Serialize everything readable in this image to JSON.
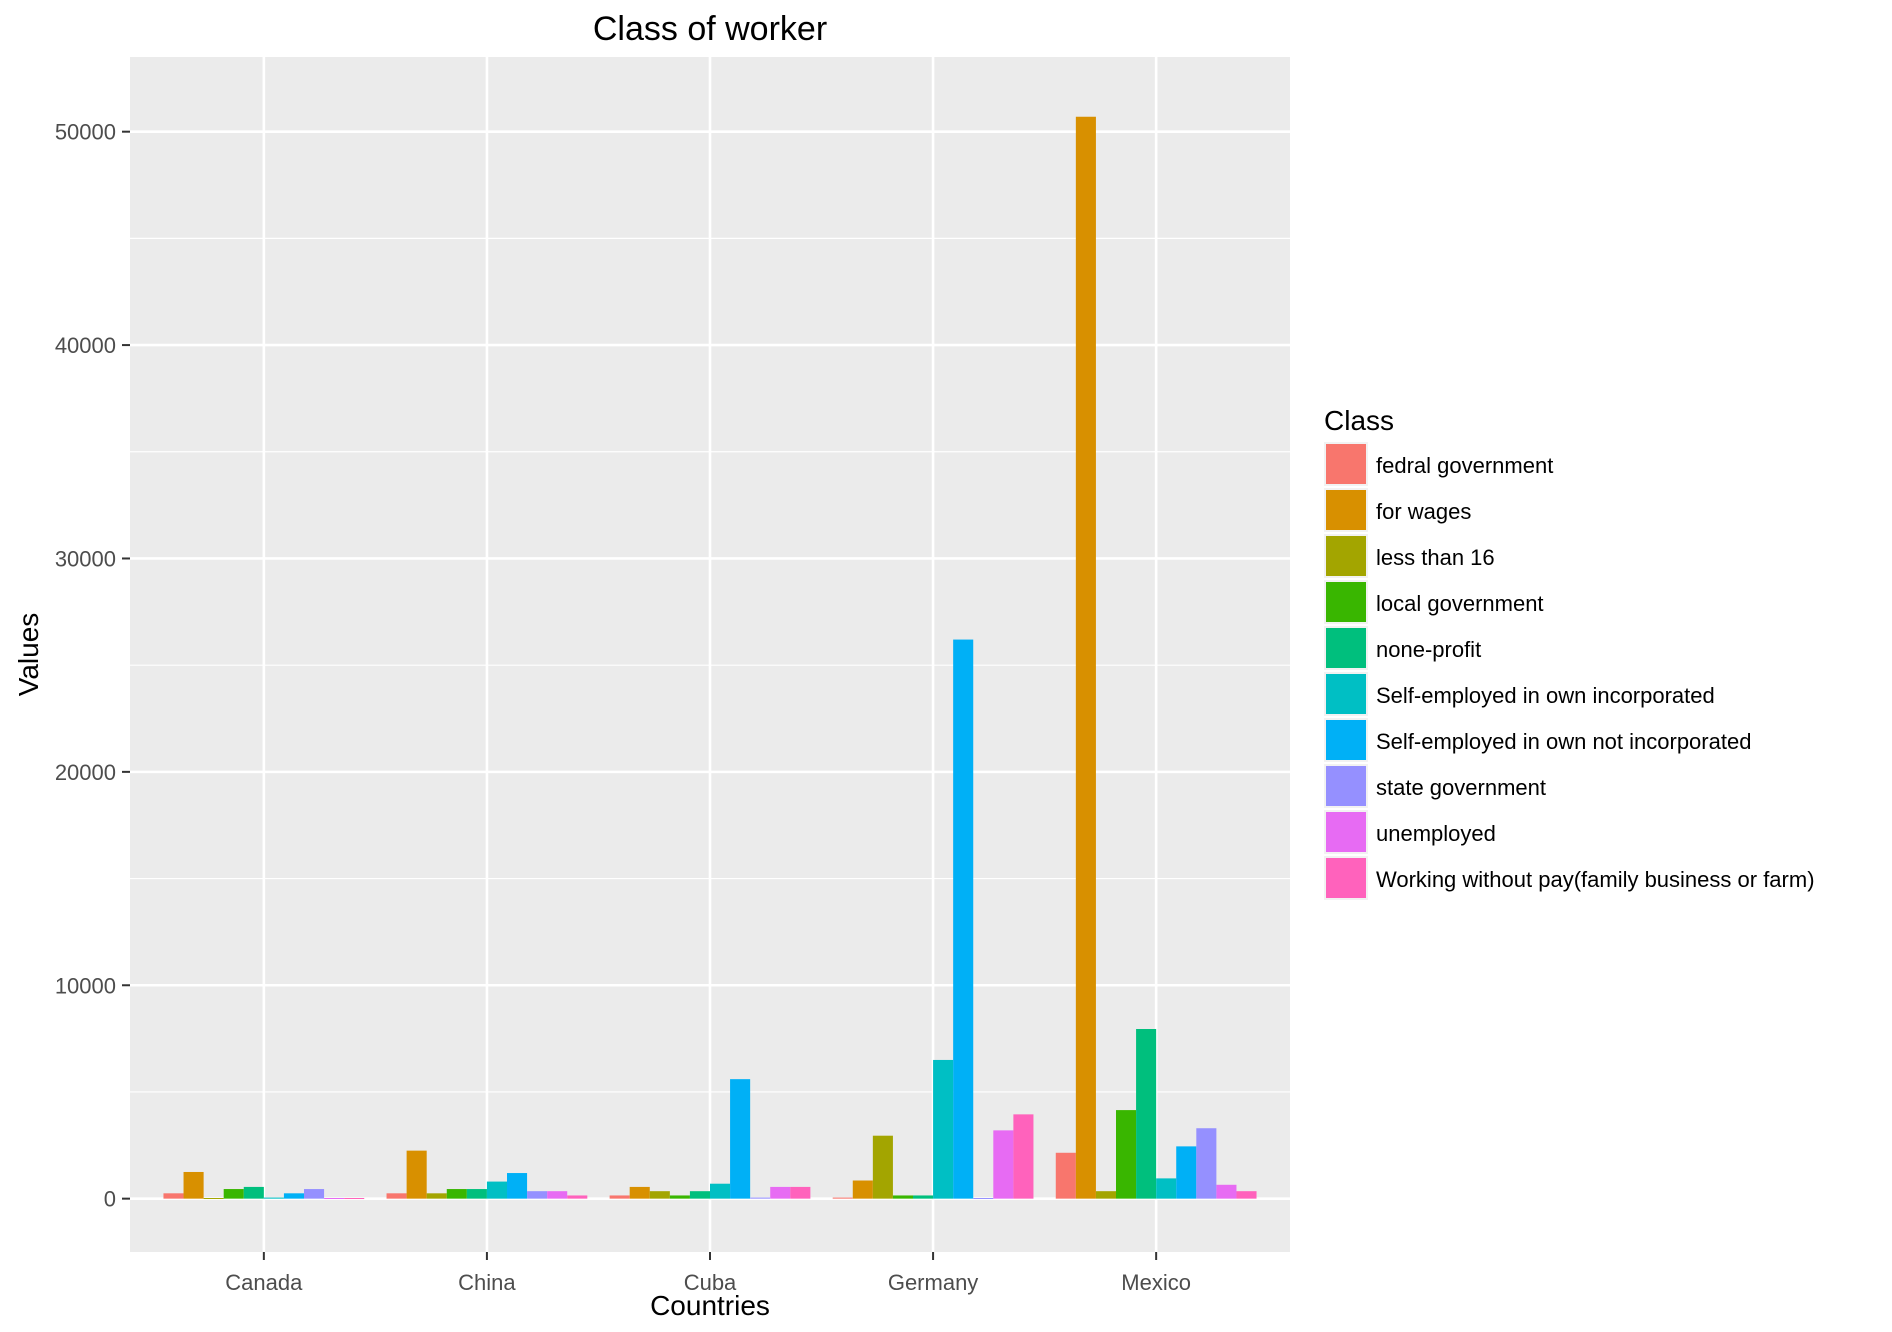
{
  "chart_data": {
    "type": "bar",
    "title": "Class of worker",
    "xlabel": "Countries",
    "ylabel": "Values",
    "categories": [
      "Canada",
      "China",
      "Cuba",
      "Germany",
      "Mexico"
    ],
    "ylim": [
      -2500,
      53500
    ],
    "yticks": [
      0,
      10000,
      20000,
      30000,
      40000,
      50000
    ],
    "y_tick_labels": [
      "0",
      "10000",
      "20000",
      "30000",
      "40000",
      "50000"
    ],
    "grid": true,
    "legend_title": "Class",
    "legend_position": "right",
    "series": [
      {
        "name": "fedral government",
        "color": "#F8766D",
        "values": [
          250,
          250,
          150,
          50,
          2150
        ]
      },
      {
        "name": "for wages",
        "color": "#D89000",
        "values": [
          1250,
          2250,
          550,
          850,
          50700
        ]
      },
      {
        "name": "less than 16",
        "color": "#A3A500",
        "values": [
          30,
          250,
          350,
          2950,
          350
        ]
      },
      {
        "name": "local government",
        "color": "#39B600",
        "values": [
          450,
          450,
          150,
          150,
          4150
        ]
      },
      {
        "name": "none-profit",
        "color": "#00BF7D",
        "values": [
          550,
          450,
          350,
          150,
          7950
        ]
      },
      {
        "name": "Self-employed in own incorporated",
        "color": "#00BFC4",
        "values": [
          50,
          800,
          700,
          6500,
          950
        ]
      },
      {
        "name": "Self-employed in own not incorporated",
        "color": "#00B0F6",
        "values": [
          250,
          1200,
          5600,
          26200,
          2450
        ]
      },
      {
        "name": "state government",
        "color": "#9590FF",
        "values": [
          450,
          350,
          50,
          30,
          3300
        ]
      },
      {
        "name": "unemployed",
        "color": "#E76BF3",
        "values": [
          30,
          350,
          550,
          3200,
          650
        ]
      },
      {
        "name": "Working without pay(family business or farm)",
        "color": "#FF62BC",
        "values": [
          30,
          150,
          550,
          3950,
          350
        ]
      }
    ]
  }
}
